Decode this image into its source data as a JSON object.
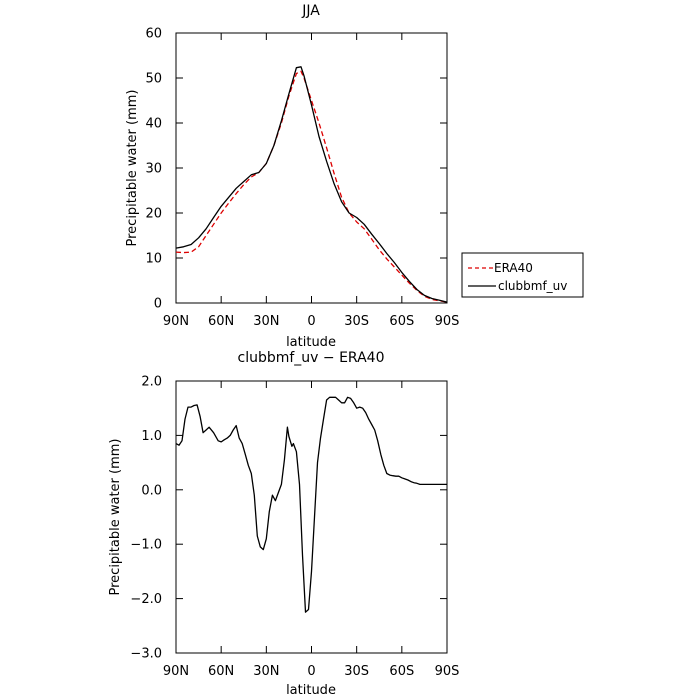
{
  "chart_data": [
    {
      "type": "line",
      "title": "JJA",
      "xlabel": "latitude",
      "ylabel": "Precipitable water (mm)",
      "xlim": [
        90,
        -90
      ],
      "ylim": [
        0,
        60
      ],
      "x_ticks": [
        90,
        60,
        30,
        0,
        -30,
        -60,
        -90
      ],
      "x_tick_labels": [
        "90N",
        "60N",
        "30N",
        "0",
        "30S",
        "60S",
        "90S"
      ],
      "y_ticks": [
        0,
        10,
        20,
        30,
        40,
        50,
        60
      ],
      "y_tick_labels": [
        "0",
        "10",
        "20",
        "30",
        "40",
        "50",
        "60"
      ],
      "grid": false,
      "legend_position": "right",
      "series": [
        {
          "name": "ERA40",
          "color": "#dd0000",
          "dash": "dashed",
          "x": [
            90,
            85,
            80,
            75,
            70,
            65,
            60,
            55,
            50,
            45,
            40,
            35,
            30,
            25,
            20,
            15,
            10,
            7,
            5,
            0,
            -5,
            -10,
            -15,
            -20,
            -25,
            -30,
            -35,
            -40,
            -45,
            -50,
            -55,
            -60,
            -65,
            -70,
            -75,
            -80,
            -85,
            -90
          ],
          "values": [
            11.3,
            11.2,
            11.3,
            12.5,
            15.0,
            17.5,
            20.0,
            22.2,
            24.3,
            26.3,
            28.0,
            29.0,
            31.0,
            35.0,
            40.0,
            46.0,
            51.0,
            51.5,
            50.0,
            45.0,
            40.0,
            34.5,
            28.8,
            23.5,
            20.0,
            18.0,
            16.5,
            14.2,
            11.8,
            9.8,
            8.0,
            6.2,
            4.4,
            2.8,
            1.5,
            0.8,
            0.5,
            0.2
          ]
        },
        {
          "name": "clubbmf_uv",
          "color": "#000000",
          "dash": "solid",
          "x": [
            90,
            85,
            80,
            75,
            70,
            65,
            60,
            55,
            50,
            45,
            40,
            35,
            30,
            25,
            20,
            15,
            10,
            7,
            5,
            0,
            -5,
            -10,
            -15,
            -20,
            -25,
            -30,
            -35,
            -40,
            -45,
            -50,
            -55,
            -60,
            -65,
            -70,
            -75,
            -80,
            -85,
            -90
          ],
          "values": [
            12.2,
            12.5,
            13.0,
            14.5,
            16.5,
            19.0,
            21.5,
            23.5,
            25.5,
            27.0,
            28.5,
            29.0,
            31.0,
            35.0,
            40.5,
            46.5,
            52.3,
            52.5,
            50.5,
            44.0,
            37.0,
            31.5,
            26.5,
            22.5,
            20.0,
            19.0,
            17.5,
            15.3,
            13.2,
            11.0,
            9.0,
            6.8,
            4.8,
            3.0,
            1.7,
            1.0,
            0.6,
            0.2
          ]
        }
      ]
    },
    {
      "type": "line",
      "title": "clubbmf_uv − ERA40",
      "xlabel": "latitude",
      "ylabel": "Precipitable water (mm)",
      "xlim": [
        90,
        -90
      ],
      "ylim": [
        -3.0,
        2.0
      ],
      "x_ticks": [
        90,
        60,
        30,
        0,
        -30,
        -60,
        -90
      ],
      "x_tick_labels": [
        "90N",
        "60N",
        "30N",
        "0",
        "30S",
        "60S",
        "90S"
      ],
      "y_ticks": [
        2.0,
        1.0,
        0.0,
        -1.0,
        -2.0,
        -3.0
      ],
      "y_tick_labels": [
        "2.0",
        "1.0",
        "0.0",
        "−1.0",
        "−2.0",
        "−3.0"
      ],
      "grid": false,
      "series": [
        {
          "color": "#000000",
          "dash": "solid",
          "x": [
            90,
            88,
            86,
            84,
            82,
            80,
            78,
            76,
            74,
            72,
            70,
            68,
            65,
            62,
            60,
            58,
            56,
            54,
            52,
            50,
            48,
            46,
            44,
            42,
            40,
            38,
            36,
            34,
            32,
            30,
            28,
            26,
            24,
            22,
            20,
            18,
            16,
            15,
            13,
            12,
            10,
            8,
            6,
            4,
            2,
            0,
            -2,
            -4,
            -6,
            -8,
            -10,
            -12,
            -14,
            -16,
            -18,
            -20,
            -22,
            -24,
            -26,
            -28,
            -30,
            -32,
            -34,
            -36,
            -38,
            -40,
            -42,
            -44,
            -46,
            -48,
            -50,
            -52,
            -54,
            -56,
            -58,
            -60,
            -62,
            -64,
            -66,
            -68,
            -70,
            -72,
            -74,
            -76,
            -78,
            -80,
            -82,
            -84,
            -86,
            -88,
            -90
          ],
          "values": [
            0.85,
            0.82,
            0.9,
            1.3,
            1.52,
            1.52,
            1.55,
            1.56,
            1.35,
            1.05,
            1.1,
            1.15,
            1.05,
            0.9,
            0.88,
            0.92,
            0.95,
            1.0,
            1.1,
            1.18,
            0.95,
            0.85,
            0.65,
            0.45,
            0.3,
            -0.1,
            -0.85,
            -1.05,
            -1.1,
            -0.9,
            -0.4,
            -0.1,
            -0.2,
            -0.05,
            0.1,
            0.55,
            1.15,
            0.98,
            0.8,
            0.85,
            0.7,
            0.1,
            -1.2,
            -2.25,
            -2.2,
            -1.5,
            -0.5,
            0.5,
            0.95,
            1.3,
            1.65,
            1.7,
            1.7,
            1.7,
            1.65,
            1.6,
            1.6,
            1.7,
            1.68,
            1.6,
            1.5,
            1.52,
            1.5,
            1.42,
            1.3,
            1.2,
            1.1,
            0.9,
            0.65,
            0.45,
            0.3,
            0.27,
            0.26,
            0.25,
            0.25,
            0.22,
            0.2,
            0.18,
            0.15,
            0.13,
            0.12,
            0.1,
            0.1,
            0.1,
            0.1,
            0.1,
            0.1,
            0.1,
            0.1,
            0.1,
            0.1
          ]
        }
      ]
    }
  ]
}
